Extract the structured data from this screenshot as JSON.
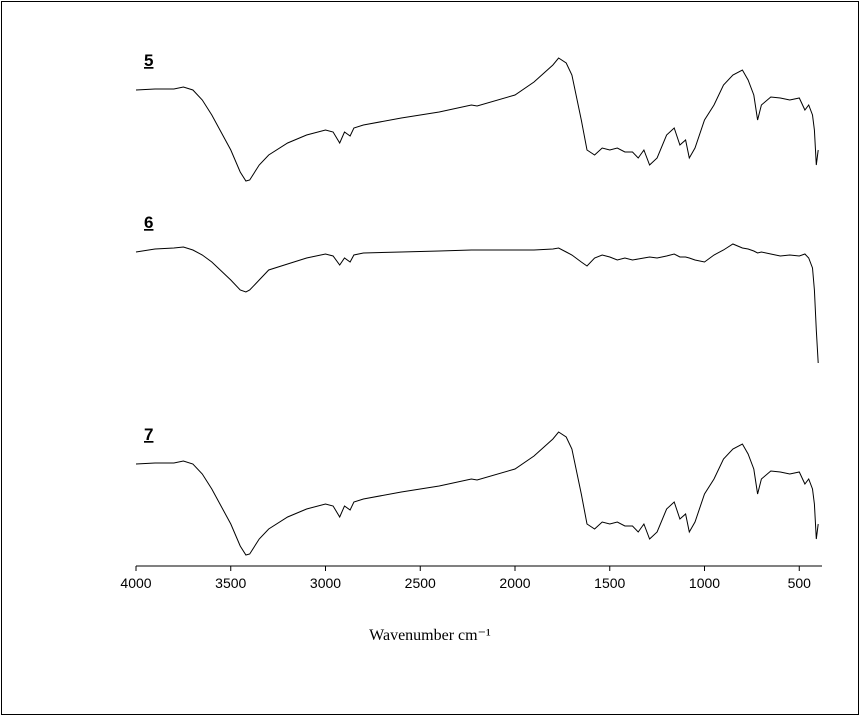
{
  "chart_data": {
    "type": "line",
    "xlabel": "Wavenumber cm⁻¹",
    "x": [
      4000,
      3900,
      3800,
      3750,
      3700,
      3650,
      3600,
      3500,
      3450,
      3420,
      3400,
      3350,
      3300,
      3200,
      3100,
      3000,
      2960,
      2925,
      2900,
      2870,
      2850,
      2800,
      2600,
      2400,
      2230,
      2200,
      2000,
      1900,
      1800,
      1770,
      1730,
      1700,
      1650,
      1620,
      1580,
      1540,
      1500,
      1460,
      1420,
      1380,
      1350,
      1320,
      1290,
      1250,
      1200,
      1160,
      1130,
      1100,
      1080,
      1050,
      1000,
      950,
      900,
      850,
      800,
      770,
      740,
      720,
      700,
      650,
      600,
      550,
      500,
      470,
      450,
      430,
      420,
      410,
      400
    ],
    "xlim": [
      4000,
      380
    ],
    "xticks": [
      4000,
      3500,
      3000,
      2500,
      2000,
      1500,
      1000,
      500
    ],
    "ylim": [
      0,
      526
    ],
    "series": [
      {
        "name": "5",
        "color": "#000000",
        "values": [
          476,
          477,
          477,
          479,
          476,
          466,
          451,
          416,
          394,
          385,
          386,
          401,
          411,
          423,
          431,
          436,
          434,
          423,
          434,
          430,
          438,
          441,
          448,
          454,
          461,
          460,
          471,
          484,
          501,
          508,
          503,
          491,
          446,
          416,
          411,
          418,
          416,
          418,
          414,
          414,
          408,
          416,
          401,
          408,
          431,
          438,
          421,
          426,
          408,
          418,
          446,
          461,
          481,
          491,
          496,
          486,
          471,
          446,
          461,
          469,
          468,
          466,
          468,
          456,
          461,
          451,
          436,
          401,
          416
        ]
      },
      {
        "name": "6",
        "color": "#000000",
        "values": [
          314,
          317,
          318,
          319,
          316,
          311,
          304,
          286,
          276,
          274,
          276,
          286,
          296,
          302,
          308,
          312,
          310,
          301,
          308,
          304,
          311,
          313,
          314,
          315,
          316,
          316,
          316,
          316,
          317,
          318,
          314,
          311,
          304,
          300,
          308,
          311,
          309,
          306,
          308,
          306,
          307,
          308,
          309,
          308,
          310,
          312,
          309,
          309,
          308,
          306,
          304,
          311,
          316,
          322,
          318,
          317,
          315,
          313,
          314,
          312,
          310,
          311,
          310,
          312,
          308,
          298,
          276,
          236,
          203
        ]
      },
      {
        "name": "7",
        "color": "#000000",
        "values": [
          102,
          103,
          103,
          105,
          102,
          92,
          77,
          42,
          20,
          11,
          12,
          27,
          37,
          49,
          57,
          62,
          60,
          49,
          60,
          56,
          64,
          67,
          74,
          80,
          87,
          86,
          97,
          110,
          127,
          134,
          129,
          117,
          72,
          42,
          37,
          44,
          42,
          44,
          40,
          40,
          34,
          42,
          27,
          34,
          57,
          64,
          47,
          52,
          34,
          44,
          72,
          87,
          107,
          117,
          122,
          112,
          97,
          72,
          87,
          95,
          94,
          92,
          94,
          82,
          87,
          77,
          62,
          27,
          42
        ]
      }
    ]
  }
}
